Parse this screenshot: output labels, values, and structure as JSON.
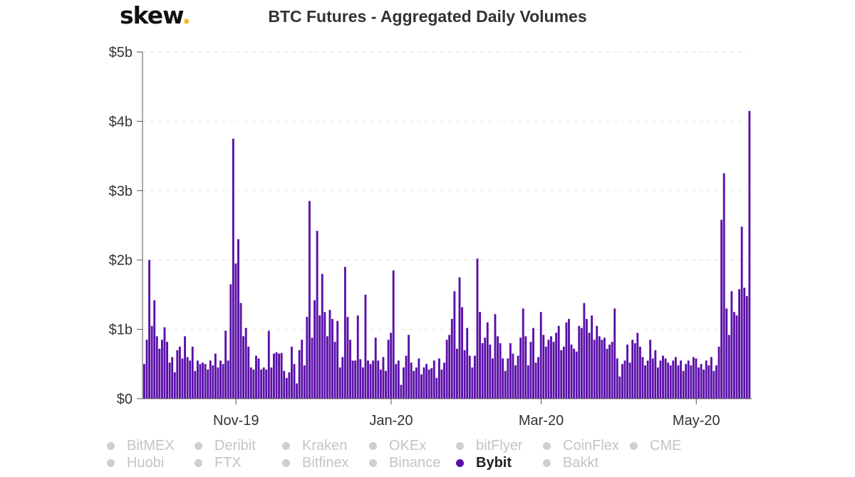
{
  "brand": {
    "name": "skew",
    "dot": "."
  },
  "chart_data": {
    "type": "bar",
    "title": "BTC Futures - Aggregated Daily Volumes",
    "ylim": [
      0,
      5
    ],
    "y_ticks": [
      "$0",
      "$1b",
      "$2b",
      "$3b",
      "$4b",
      "$5b"
    ],
    "y_tick_values": [
      0,
      1,
      2,
      3,
      4,
      5
    ],
    "x_tick_labels": [
      "Nov-19",
      "Jan-20",
      "Mar-20",
      "May-20"
    ],
    "x_tick_index": [
      36,
      97,
      156,
      217
    ],
    "grid": true,
    "bar_color": "#5a0fa8",
    "series": [
      {
        "name": "Bybit",
        "values": [
          0.5,
          0.85,
          2.0,
          1.05,
          1.42,
          0.9,
          0.72,
          0.85,
          1.03,
          0.82,
          0.52,
          0.6,
          0.38,
          0.7,
          0.75,
          0.58,
          0.9,
          0.6,
          0.55,
          0.75,
          0.4,
          0.55,
          0.5,
          0.52,
          0.5,
          0.42,
          0.55,
          0.48,
          0.65,
          0.45,
          0.55,
          0.5,
          0.98,
          0.55,
          1.65,
          3.75,
          1.95,
          2.3,
          1.38,
          0.9,
          1.02,
          0.75,
          0.45,
          0.42,
          0.62,
          0.58,
          0.42,
          0.45,
          0.42,
          0.98,
          0.45,
          0.65,
          0.67,
          0.65,
          0.66,
          0.4,
          0.3,
          0.38,
          0.75,
          0.5,
          0.22,
          0.7,
          0.85,
          0.48,
          1.18,
          2.85,
          0.88,
          1.42,
          2.42,
          1.2,
          1.8,
          1.25,
          0.9,
          1.28,
          1.15,
          0.82,
          1.12,
          0.45,
          0.6,
          1.9,
          1.18,
          0.85,
          0.55,
          0.55,
          1.2,
          0.57,
          0.45,
          1.5,
          0.55,
          0.5,
          0.55,
          0.88,
          0.55,
          0.42,
          0.6,
          0.4,
          0.85,
          0.95,
          1.85,
          0.5,
          0.55,
          0.2,
          0.45,
          0.62,
          0.92,
          0.52,
          0.4,
          0.45,
          0.58,
          0.35,
          0.45,
          0.5,
          0.42,
          0.44,
          0.55,
          0.3,
          0.58,
          0.42,
          0.52,
          0.85,
          0.92,
          1.15,
          1.55,
          0.72,
          1.75,
          1.32,
          0.7,
          1.02,
          0.62,
          0.45,
          0.62,
          2.02,
          1.25,
          0.8,
          0.88,
          1.1,
          0.78,
          0.58,
          1.22,
          0.9,
          0.8,
          0.58,
          0.4,
          0.58,
          0.8,
          0.65,
          0.48,
          0.62,
          0.88,
          1.3,
          0.9,
          0.48,
          0.82,
          1.02,
          0.52,
          0.6,
          1.25,
          0.92,
          0.75,
          0.85,
          0.9,
          0.82,
          0.95,
          1.05,
          0.7,
          0.75,
          1.1,
          1.15,
          0.78,
          0.72,
          0.68,
          1.05,
          1.02,
          1.38,
          1.15,
          0.95,
          1.2,
          0.85,
          1.05,
          0.9,
          0.85,
          0.88,
          0.72,
          0.78,
          0.82,
          1.3,
          0.58,
          0.32,
          0.5,
          0.55,
          0.78,
          0.52,
          0.85,
          0.8,
          0.95,
          0.75,
          0.6,
          0.48,
          0.55,
          0.85,
          0.58,
          0.7,
          0.45,
          0.55,
          0.62,
          0.58,
          0.52,
          0.48,
          0.55,
          0.6,
          0.48,
          0.55,
          0.4,
          0.5,
          0.55,
          0.48,
          0.6,
          0.58,
          0.45,
          0.5,
          0.42,
          0.55,
          0.48,
          0.6,
          0.4,
          0.48,
          0.75,
          2.58,
          3.25,
          1.3,
          0.92,
          1.55,
          1.25,
          1.2,
          1.58,
          2.48,
          1.6,
          1.48,
          4.15
        ]
      }
    ],
    "legend": [
      [
        "BitMEX",
        "Deribit",
        "Kraken",
        "OKEx",
        "bitFlyer",
        "CoinFlex",
        "CME"
      ],
      [
        "Huobi",
        "FTX",
        "Bitfinex",
        "Binance",
        "Bybit",
        "Bakkt"
      ]
    ],
    "legend_active": "Bybit",
    "legend_position": "bottom"
  }
}
